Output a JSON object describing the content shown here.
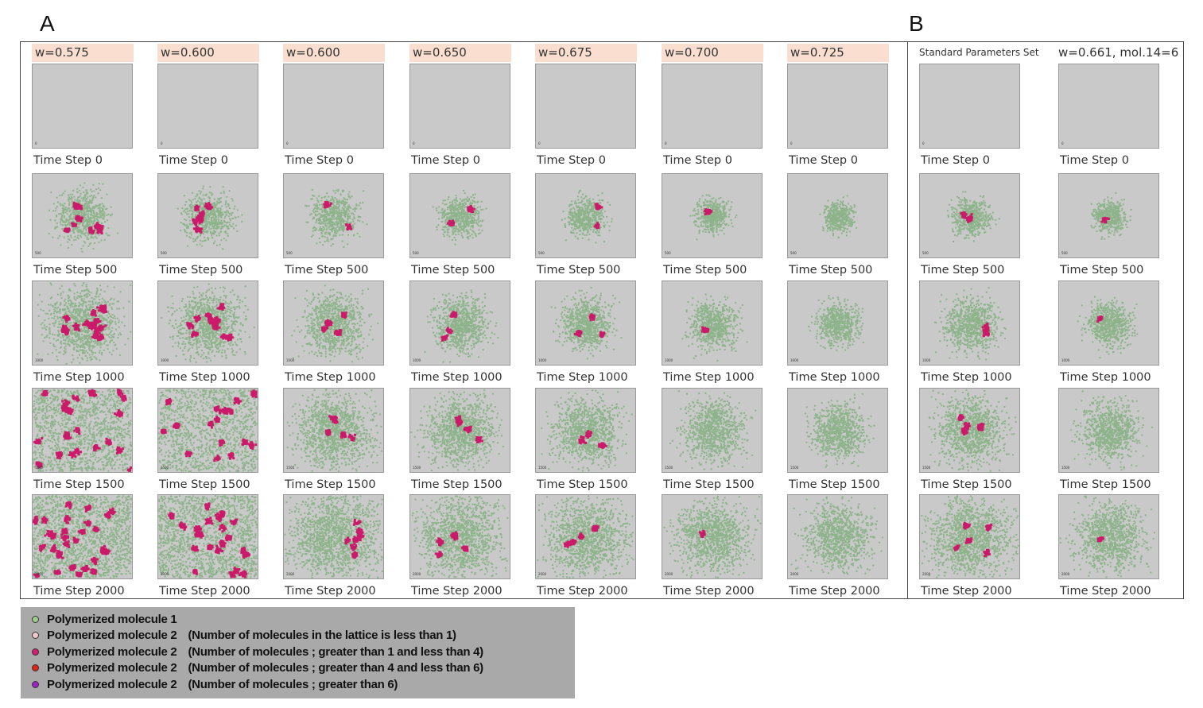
{
  "panels": {
    "a_label": "A",
    "b_label": "B"
  },
  "colors": {
    "header_bg": "#fadfd0",
    "tile_bg": "#c9c9c9",
    "green_molecule": "#8db38a",
    "magenta_molecule": "#cc1a6b"
  },
  "panel_a": {
    "columns": [
      {
        "header": "w=0.575",
        "spread": 1.0
      },
      {
        "header": "w=0.600",
        "spread": 0.85
      },
      {
        "header": "w=0.600",
        "spread": 0.7
      },
      {
        "header": "w=0.650",
        "spread": 0.5
      },
      {
        "header": "w=0.675",
        "spread": 0.4
      },
      {
        "header": "w=0.700",
        "spread": 0.25
      },
      {
        "header": "w=0.725",
        "spread": 0.1
      }
    ]
  },
  "panel_b": {
    "columns": [
      {
        "header": "Standard Parameters Set",
        "spread": 0.45
      },
      {
        "header": "w=0.661, mol.14=6",
        "spread": 0.2
      }
    ]
  },
  "time_steps": [
    "Time Step 0",
    "Time Step 500",
    "Time Step 1000",
    "Time Step 1500",
    "Time Step 2000"
  ],
  "tile_step_marks": [
    "0",
    "500",
    "1000",
    "1500",
    "2000"
  ],
  "legend": [
    {
      "label": "Polymerized molecule 1",
      "note": "",
      "color": "#9ccf8f"
    },
    {
      "label": "Polymerized molecule 2",
      "note": "(Number of molecules in the lattice is less than 1)",
      "color": "#f3c6cf"
    },
    {
      "label": "Polymerized molecule 2",
      "note": "(Number of molecules ; greater than 1 and less than 4)",
      "color": "#d81b74"
    },
    {
      "label": "Polymerized molecule 2",
      "note": "(Number of molecules ; greater than 4 and less than 6)",
      "color": "#e0241c"
    },
    {
      "label": "Polymerized molecule 2",
      "note": "(Number of molecules ; greater than 6)",
      "color": "#a020c8"
    }
  ]
}
